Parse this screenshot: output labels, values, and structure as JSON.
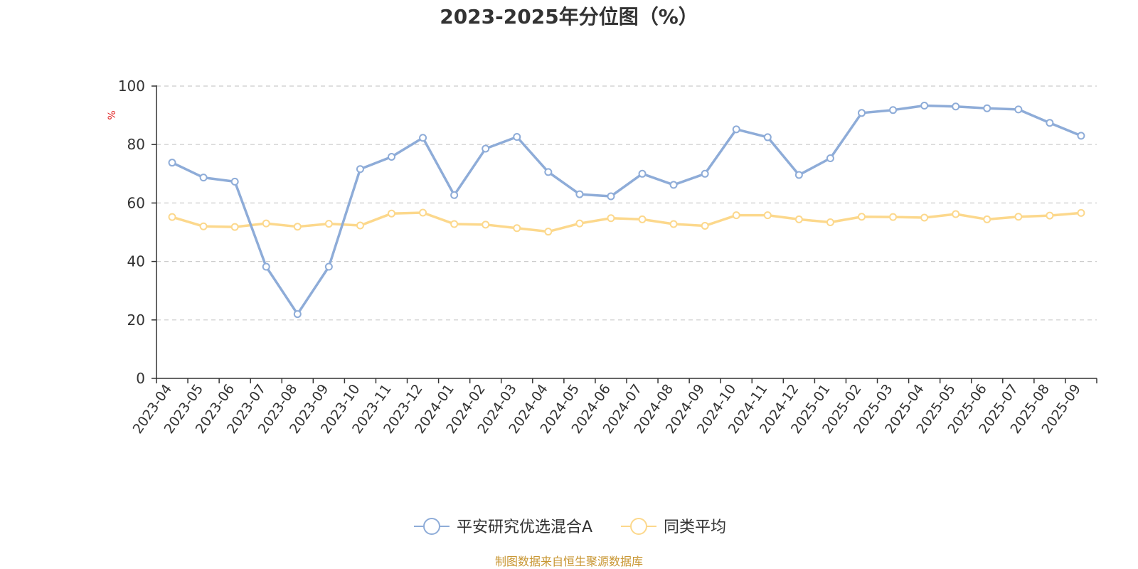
{
  "chart_data": {
    "type": "line",
    "title": "2023-2025年分位图（%）",
    "ylabel": "%",
    "xlabel": "",
    "ylim": [
      0,
      100
    ],
    "yticks": [
      0,
      20,
      40,
      60,
      80,
      100
    ],
    "grid": true,
    "legend_position": "bottom-center",
    "categories": [
      "2023-04",
      "2023-05",
      "2023-06",
      "2023-07",
      "2023-08",
      "2023-09",
      "2023-10",
      "2023-11",
      "2023-12",
      "2024-01",
      "2024-02",
      "2024-03",
      "2024-04",
      "2024-05",
      "2024-06",
      "2024-07",
      "2024-08",
      "2024-09",
      "2024-10",
      "2024-11",
      "2024-12",
      "2025-01",
      "2025-02",
      "2025-03",
      "2025-04",
      "2025-05",
      "2025-06",
      "2025-07",
      "2025-08",
      "2025-09"
    ],
    "series": [
      {
        "name": "平安研究优选混合A",
        "color": "#8eacd8",
        "values": [
          73.8,
          68.7,
          67.3,
          38.2,
          22.0,
          38.2,
          71.6,
          75.8,
          82.3,
          62.7,
          78.6,
          82.6,
          70.6,
          63.0,
          62.3,
          70.0,
          66.2,
          70.0,
          85.2,
          82.5,
          69.6,
          75.3,
          90.8,
          91.8,
          93.3,
          93.0,
          92.4,
          92.0,
          87.4,
          83.0
        ]
      },
      {
        "name": "同类平均",
        "color": "#fcd88c",
        "values": [
          55.2,
          52.0,
          51.8,
          53.0,
          51.9,
          52.9,
          52.3,
          56.4,
          56.7,
          52.8,
          52.6,
          51.4,
          50.2,
          53.0,
          54.8,
          54.4,
          52.8,
          52.2,
          55.8,
          55.8,
          54.4,
          53.4,
          55.3,
          55.2,
          55.0,
          56.2,
          54.4,
          55.3,
          55.7,
          56.6
        ]
      }
    ]
  },
  "source": {
    "text": "制图数据来自恒生聚源数据库",
    "color": "#c89632"
  },
  "colors": {
    "axis": "#333333",
    "grid": "#cccccc",
    "unit": "#e02020"
  }
}
